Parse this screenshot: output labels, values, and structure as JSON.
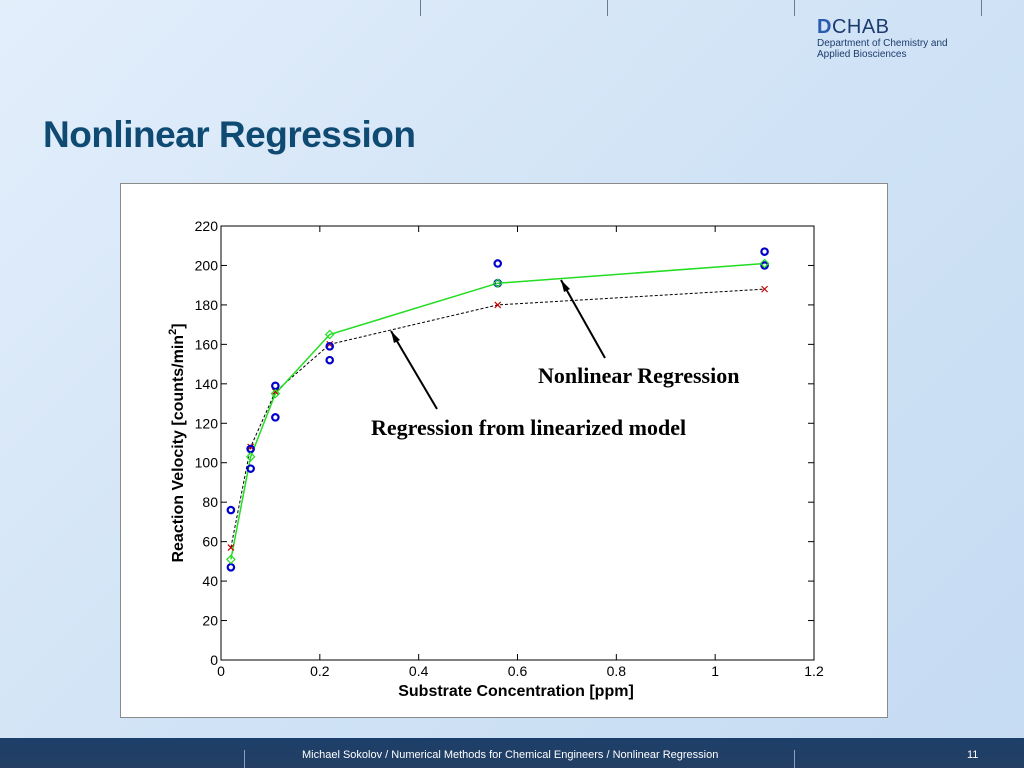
{
  "slide": {
    "title": "Nonlinear Regression",
    "footer_text": "Michael Sokolov / Numerical Methods for Chemical Engineers / Nonlinear Regression",
    "page_number": "11"
  },
  "logo": {
    "letter": "D",
    "name": "CHAB",
    "line1": "Department of Chemistry and",
    "line2": "Applied Biosciences"
  },
  "colors": {
    "title": "#0f4a73",
    "nonlinear_fit": "#22dd22",
    "linearized_fit": "#000000",
    "data_points": "#0000cc",
    "linearized_markers": "#cc0000"
  },
  "chart_data": {
    "type": "line",
    "xlabel": "Substrate Concentration [ppm]",
    "ylabel_main": "Reaction Velocity [counts/min",
    "ylabel_sup": "2",
    "ylabel_tail": "]",
    "xlim": [
      0,
      1.2
    ],
    "ylim": [
      0,
      220
    ],
    "xticks": [
      "0",
      "0.2",
      "0.4",
      "0.6",
      "0.8",
      "1",
      "1.2"
    ],
    "yticks": [
      "0",
      "20",
      "40",
      "60",
      "80",
      "100",
      "120",
      "140",
      "160",
      "180",
      "200",
      "220"
    ],
    "grid": false,
    "series": [
      {
        "marker": "circle",
        "x": [
          0.02,
          0.02,
          0.06,
          0.06,
          0.11,
          0.11,
          0.22,
          0.22,
          0.56,
          0.56,
          1.1,
          1.1
        ],
        "y": [
          76,
          47,
          97,
          107,
          123,
          139,
          152,
          159,
          191,
          201,
          200,
          207
        ]
      },
      {
        "marker": "diamond",
        "x": [
          0.02,
          0.06,
          0.11,
          0.22,
          0.56,
          1.1
        ],
        "y": [
          51,
          103,
          135,
          165,
          191,
          201
        ]
      },
      {
        "marker": "x",
        "x": [
          0.02,
          0.06,
          0.11,
          0.22,
          0.56,
          1.1
        ],
        "y": [
          57,
          108,
          136,
          160,
          180,
          188
        ]
      }
    ],
    "annotations": [
      "Nonlinear Regression",
      "Regression from linearized model"
    ]
  }
}
